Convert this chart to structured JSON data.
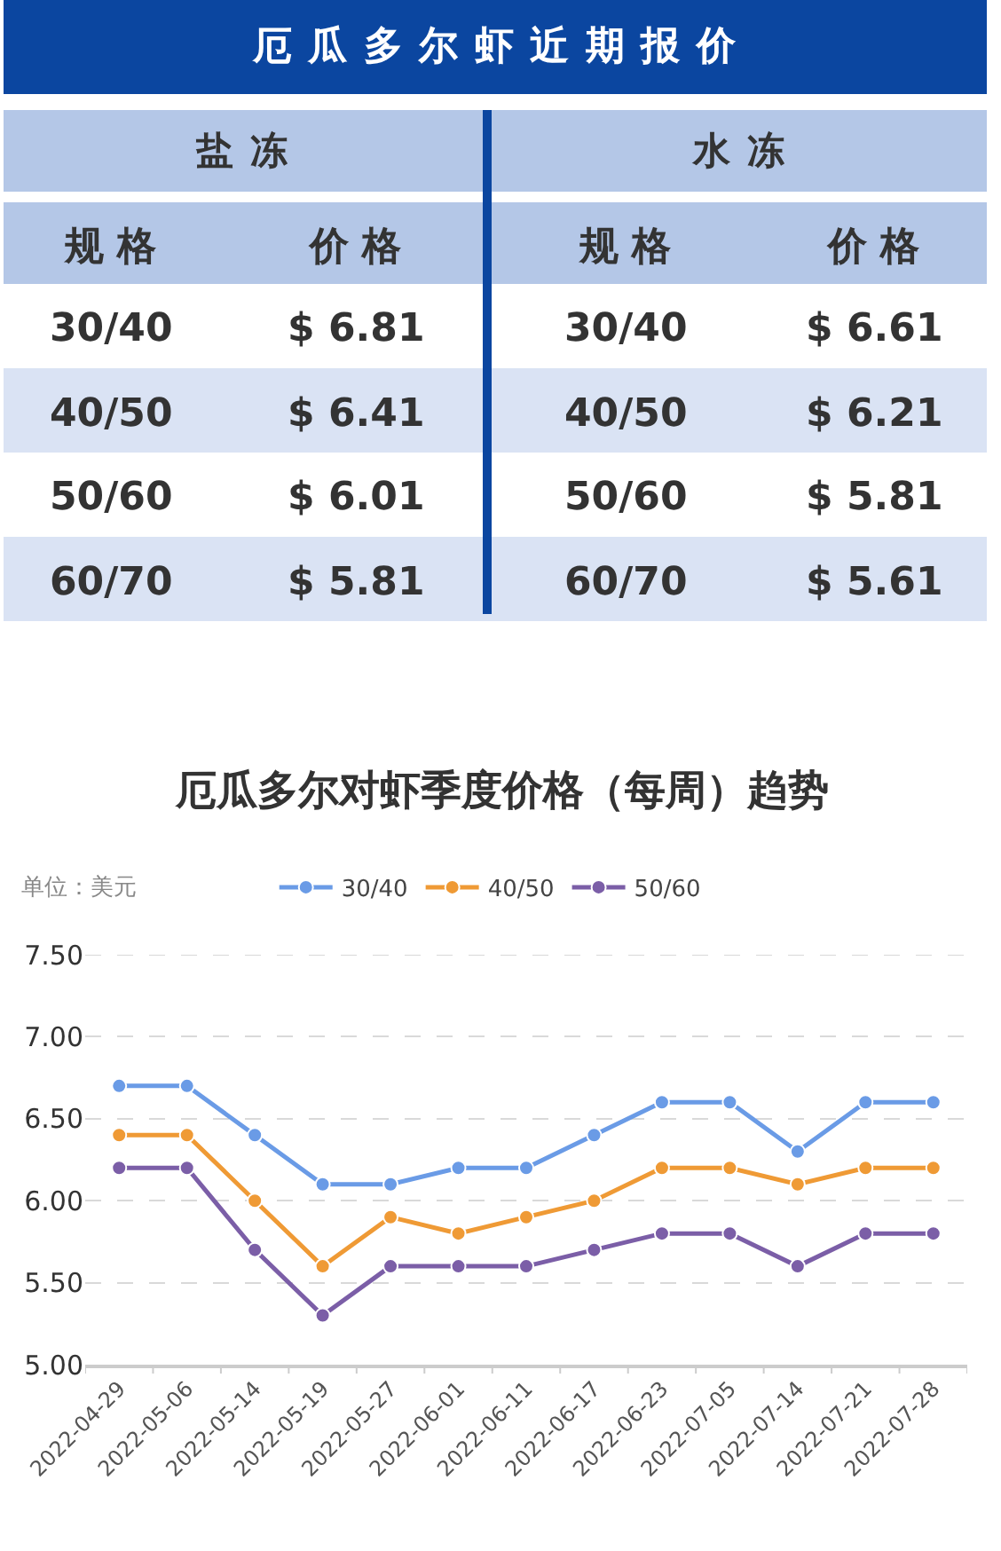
{
  "chart_data": [
    {
      "type": "other",
      "title": "厄瓜多尔虾近期报价",
      "annotations": [
        "盐冻",
        "水冻",
        "规格",
        "价格",
        "规格",
        "价格",
        "30/40",
        "$ 6.81",
        "30/40",
        "$ 6.61",
        "40/50",
        "$ 6.41",
        "40/50",
        "$ 6.21",
        "50/60",
        "$ 6.01",
        "50/60",
        "$ 5.81",
        "60/70",
        "$ 5.81",
        "60/70",
        "$ 5.61"
      ]
    },
    {
      "type": "line",
      "title": "厄瓜多尔对虾季度价格（每周）趋势",
      "annotations": [
        "单位：美元"
      ],
      "categories": [
        "2022-04-29",
        "2022-05-06",
        "2022-05-14",
        "2022-05-19",
        "2022-05-27",
        "2022-06-01",
        "2022-06-11",
        "2022-06-17",
        "2022-06-23",
        "2022-07-05",
        "2022-07-14",
        "2022-07-21",
        "2022-07-28"
      ],
      "series": [
        {
          "name": "30/40",
          "color": "#6a9be6",
          "values": [
            6.7,
            6.7,
            6.4,
            6.1,
            6.1,
            6.2,
            6.2,
            6.4,
            6.6,
            6.6,
            6.3,
            6.6,
            6.6
          ]
        },
        {
          "name": "40/50",
          "color": "#ef9a35",
          "values": [
            6.4,
            6.4,
            6.0,
            5.6,
            5.9,
            5.8,
            5.9,
            6.0,
            6.2,
            6.2,
            6.1,
            6.2,
            6.2
          ]
        },
        {
          "name": "50/60",
          "color": "#7b5ea7",
          "values": [
            6.2,
            6.2,
            5.7,
            5.3,
            5.6,
            5.6,
            5.6,
            5.7,
            5.8,
            5.8,
            5.6,
            5.8,
            5.8
          ]
        }
      ],
      "ylim": [
        5,
        7.5
      ],
      "yticks": [
        {
          "value": 5,
          "label": "5.00"
        },
        {
          "value": 5.5,
          "label": "5.50"
        },
        {
          "value": 6,
          "label": "6.00"
        },
        {
          "value": 6.5,
          "label": "6.50"
        },
        {
          "value": 7,
          "label": "7.00"
        },
        {
          "value": 7.5,
          "label": "7.50"
        }
      ],
      "grid": "y",
      "legend": "top",
      "marker": "circle",
      "line_style": "solid"
    }
  ]
}
